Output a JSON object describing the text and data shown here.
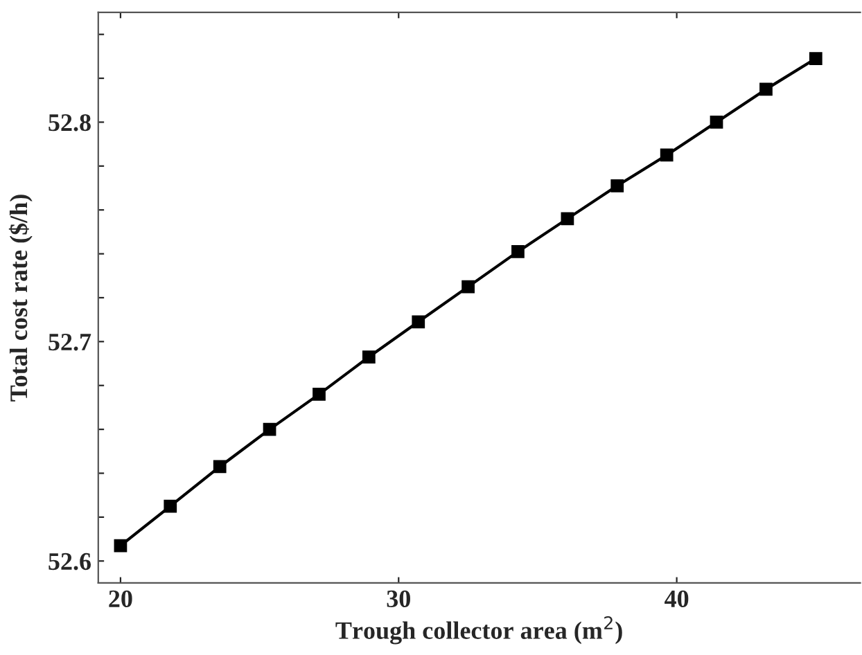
{
  "chart_data": {
    "type": "line",
    "xlabel": "Trough collector area (m$^{2}$)",
    "ylabel": "Total cost rate ($/h)",
    "x": [
      20,
      21.79,
      23.57,
      25.36,
      27.14,
      28.93,
      30.71,
      32.5,
      34.29,
      36.07,
      37.86,
      39.64,
      41.43,
      43.21,
      45
    ],
    "series": [
      {
        "color": "#000000",
        "values": [
          52.607,
          52.625,
          52.643,
          52.66,
          52.676,
          52.693,
          52.709,
          52.725,
          52.741,
          52.756,
          52.771,
          52.785,
          52.8,
          52.815,
          52.829
        ]
      }
    ],
    "xlim": [
      19.2,
      46.6
    ],
    "xticks": [
      20,
      30,
      40
    ],
    "ylim": [
      52.59,
      52.85
    ],
    "yticks": [
      52.6,
      {
        "value": 52.62,
        "label": null
      },
      {
        "value": 52.64,
        "label": null
      },
      {
        "value": 52.66,
        "label": null
      },
      {
        "value": 52.68,
        "label": null
      },
      52.7,
      {
        "value": 52.72,
        "label": null
      },
      {
        "value": 52.74,
        "label": null
      },
      {
        "value": 52.76,
        "label": null
      },
      {
        "value": 52.78,
        "label": null
      },
      52.8,
      {
        "value": 52.82,
        "label": null
      },
      {
        "value": 52.84,
        "label": null
      }
    ],
    "marker": "square",
    "line_style": "solid",
    "grid": false,
    "legend": false
  }
}
